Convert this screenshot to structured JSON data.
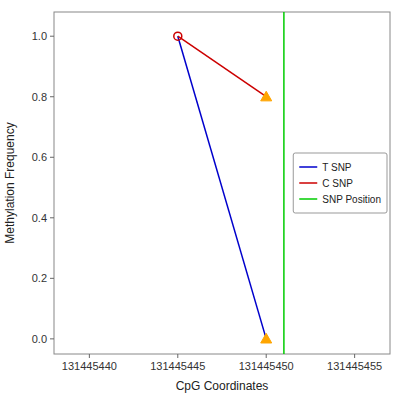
{
  "chart_data": {
    "type": "line",
    "x": [
      131445445,
      131445450
    ],
    "series": [
      {
        "name": "T SNP",
        "color": "#0000cc",
        "values": [
          1.0,
          0.0
        ],
        "markers": [
          "circle",
          "triangle"
        ],
        "colors": [
          "#cc0000",
          "#ffa500"
        ]
      },
      {
        "name": "C SNP",
        "color": "#cc0000",
        "values": [
          1.0,
          0.8
        ],
        "markers": [
          null,
          "triangle"
        ],
        "colors": [
          null,
          "#ffa500"
        ]
      }
    ],
    "vlines": [
      {
        "name": "SNP Position",
        "x": 131445451,
        "color": "#00cc00"
      }
    ],
    "xlabel": "CpG Coordinates",
    "ylabel": "Methylation Frequency",
    "xlim": [
      131445438,
      131445457
    ],
    "ylim": [
      -0.05,
      1.08
    ],
    "xticks": [
      131445440,
      131445445,
      131445450,
      131445455
    ],
    "yticks": [
      {
        "value": 0.0,
        "label": "0.0"
      },
      {
        "value": 0.2,
        "label": "0.2"
      },
      {
        "value": 0.4,
        "label": "0.4"
      },
      {
        "value": 0.6,
        "label": "0.6"
      },
      {
        "value": 0.8,
        "label": "0.8"
      },
      {
        "value": 1.0,
        "label": "1.0"
      }
    ],
    "grid": false,
    "legend": "right"
  }
}
